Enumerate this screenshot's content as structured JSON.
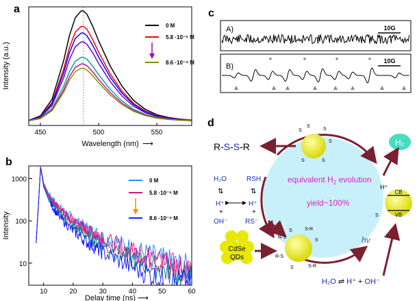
{
  "figure": {
    "panels": [
      "a",
      "b",
      "c",
      "d"
    ]
  },
  "chart_data": [
    {
      "id": "a",
      "type": "line",
      "panel_label": "a",
      "xlabel": "Wavelength (nm)",
      "ylabel": "Intensity (a.u.)",
      "xlim": [
        440,
        580
      ],
      "xticks": [
        450,
        500,
        550
      ],
      "marker_line_x": 487,
      "legend": [
        "0 M",
        "5.8 ·10⁻⁵ M",
        "8.6 ·10⁻⁴ M"
      ],
      "series": [
        {
          "name": "0 M",
          "color": "#000000",
          "peak": 1.0
        },
        {
          "name": "5.8 ·10⁻⁵ M",
          "color": "#ff0000",
          "peak": 0.86
        },
        {
          "color": "#0000ff",
          "peak": 0.8
        },
        {
          "color": "#6a00d6",
          "peak": 0.72
        },
        {
          "color": "#00a6a6",
          "peak": 0.58
        },
        {
          "color": "#c71585",
          "peak": 0.52
        },
        {
          "name": "8.6 ·10⁻⁴ M",
          "color": "#8b8b00",
          "peak": 0.48
        }
      ],
      "x": [
        440,
        450,
        460,
        470,
        475,
        480,
        485,
        487,
        490,
        495,
        500,
        510,
        520,
        530,
        540,
        550,
        560,
        570,
        580
      ],
      "profile": [
        0.01,
        0.05,
        0.2,
        0.55,
        0.78,
        0.94,
        1.0,
        1.0,
        0.97,
        0.86,
        0.73,
        0.5,
        0.32,
        0.19,
        0.11,
        0.06,
        0.035,
        0.02,
        0.012
      ],
      "legend_arrow_color": "#a000c0"
    },
    {
      "id": "b",
      "type": "line",
      "panel_label": "b",
      "xlabel": "Delay time (ns)",
      "ylabel": "Intensity",
      "xlim": [
        5,
        60
      ],
      "ylim": [
        3,
        2000
      ],
      "yscale": "log",
      "xticks": [
        10,
        20,
        30,
        40,
        50,
        60
      ],
      "yticks": [
        10,
        100,
        1000
      ],
      "legend": [
        "0 M",
        "5.8 ·10⁻⁵ M",
        "8.6 ·10⁻⁴ M"
      ],
      "legend_arrow_color": "#ff8c00",
      "series": [
        {
          "name": "0 M",
          "color": "#1e90ff",
          "x": [
            7.5,
            9,
            10,
            12,
            15,
            20,
            25,
            30,
            40,
            50,
            60
          ],
          "y": [
            30,
            1900,
            800,
            400,
            220,
            110,
            65,
            42,
            22,
            12,
            7
          ]
        },
        {
          "name": "5.8 ·10⁻⁵ M",
          "color": "#c71585",
          "x": [
            7.5,
            9,
            10,
            12,
            15,
            20,
            25,
            30,
            40,
            50,
            60
          ],
          "y": [
            30,
            1900,
            780,
            370,
            200,
            100,
            58,
            37,
            19,
            10,
            6
          ]
        },
        {
          "color": "#ff1493",
          "x": [
            7.5,
            9,
            10,
            12,
            15,
            20,
            25,
            30,
            40,
            50,
            60
          ],
          "y": [
            30,
            1900,
            760,
            350,
            190,
            95,
            55,
            35,
            18,
            10,
            6
          ]
        },
        {
          "color": "#008b8b",
          "x": [
            7.5,
            9,
            10,
            12,
            15,
            20,
            25,
            30,
            40,
            50,
            60
          ],
          "y": [
            30,
            1900,
            700,
            320,
            160,
            75,
            42,
            26,
            12,
            7,
            4
          ]
        },
        {
          "name": "8.6 ·10⁻⁴ M",
          "color": "#1a1aff",
          "x": [
            7.5,
            9,
            10,
            12,
            15,
            20,
            25,
            30,
            40,
            50,
            60
          ],
          "y": [
            30,
            1900,
            650,
            280,
            130,
            58,
            30,
            18,
            8,
            4,
            3
          ]
        }
      ]
    },
    {
      "id": "c",
      "type": "line",
      "panel_label": "c",
      "traces": [
        {
          "label": "A)",
          "scale_label": "10G",
          "kind": "noise"
        },
        {
          "label": "B)",
          "scale_label": "10G",
          "kind": "spectrum",
          "star_count": 4,
          "triangle_count": 8
        }
      ]
    }
  ],
  "diagram": {
    "panel_label": "d",
    "disulfide": {
      "prefix": "R-",
      "s1": "S",
      "dash": "-",
      "s2": "S",
      "suffix": "-R"
    },
    "h2_product": "H₂",
    "equilibria": {
      "left_top": "H₂O",
      "left_mid": "H⁺",
      "left_plus": "+",
      "left_bottom": "OH⁻",
      "right_top": "RSH",
      "right_mid": "H⁺",
      "right_plus": "+",
      "right_bottom": "RS⁻"
    },
    "cycle_text": {
      "line1_a": "equivalent H",
      "line1_sub": "2",
      "line1_b": " evolution",
      "line2": "yield~100%"
    },
    "qd_label_1": "CdSe",
    "qd_label_2": "QDs",
    "hv_label": "hν",
    "cb_label": "CB",
    "vb_label": "VB",
    "h_plus_label": "H⁺",
    "water_split": {
      "left": "H₂O",
      "middle": "H⁺",
      "plus": " + ",
      "right": "OH⁻"
    },
    "colors": {
      "cycle_fill": "#c8f0fb",
      "cycle_text": "#e020c0",
      "qd": "#e8e800",
      "arrow": "#7a2030",
      "h2_bubble": "#44ddc0",
      "text_blue": "#1a2fb0"
    }
  }
}
